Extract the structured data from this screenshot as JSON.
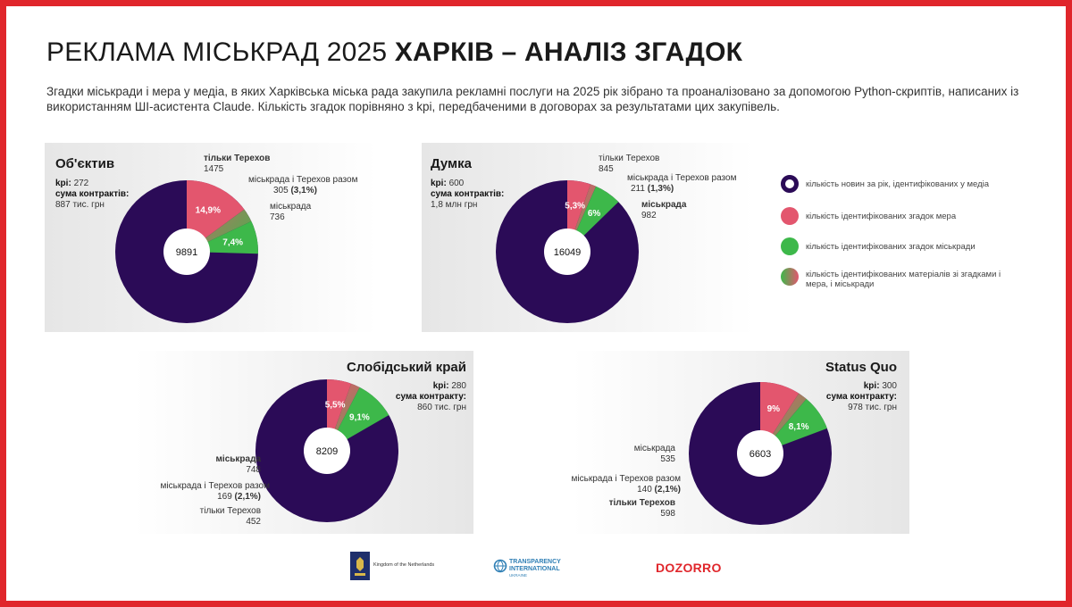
{
  "header": {
    "title_light": "РЕКЛАМА МІСЬКРАД 2025",
    "title_bold": "ХАРКІВ – АНАЛІЗ ЗГАДОК",
    "subtitle": "Згадки міськради і мера у медіа, в яких Харківська міська рада закупила рекламні послуги на 2025 рік зібрано та проаналізовано за допомогою Python-скриптів, написаних із використанням ШІ-асистента Claude. Кількість згадок порівняно з kpi, передбаченими в договорах за результатами цих закупівель."
  },
  "colors": {
    "total": "#2b0b57",
    "mayor": "#e3566e",
    "council": "#3db84a",
    "frame": "#e0262b"
  },
  "legend": [
    {
      "label": "кількість новин за рік, ідентифікованих у медіа",
      "icon": "ring-icon"
    },
    {
      "label": "кількість ідентифікованих згадок мера",
      "icon": "pink-dot-icon"
    },
    {
      "label": "кількість ідентифікованих згадок міськради",
      "icon": "green-dot-icon"
    },
    {
      "label": "кількість ідентифікованих матеріалів зі згадками і мера, і міськради",
      "icon": "gradient-dot-icon"
    }
  ],
  "chart_data": [
    {
      "type": "pie",
      "name": "Об'єктив",
      "kpi_label": "kpi:",
      "kpi_value": "272",
      "contract_label": "сума контрактів:",
      "contract_value": "887 тис. грн",
      "total": 9891,
      "slices": [
        {
          "label": "тільки Терехов",
          "value": 1475,
          "pct_label": "14,9%"
        },
        {
          "label": "міськрада і Терехов разом",
          "value": 305,
          "share": "(3,1%)"
        },
        {
          "label": "міськрада",
          "value": 736,
          "pct_label": "7,4%"
        }
      ]
    },
    {
      "type": "pie",
      "name": "Думка",
      "kpi_label": "kpi:",
      "kpi_value": "600",
      "contract_label": "сума контрактів:",
      "contract_value": "1,8 млн грн",
      "total": 16049,
      "slices": [
        {
          "label": "тільки Терехов",
          "value": 845,
          "pct_label": "5,3%"
        },
        {
          "label": "міськрада і Терехов разом",
          "value": 211,
          "share": "(1,3%)"
        },
        {
          "label": "міськрада",
          "value": 982,
          "pct_label": "6%"
        }
      ]
    },
    {
      "type": "pie",
      "name": "Слобідський край",
      "kpi_label": "kpi:",
      "kpi_value": "280",
      "contract_label": "сума контракту:",
      "contract_value": "860 тис. грн",
      "total": 8209,
      "slices": [
        {
          "label": "тільки Терехов",
          "value": 452,
          "pct_label": "5,5%"
        },
        {
          "label": "міськрада і Терехов разом",
          "value": 169,
          "share": "(2,1%)"
        },
        {
          "label": "міськрада",
          "value": 748,
          "pct_label": "9,1%"
        }
      ]
    },
    {
      "type": "pie",
      "name": "Status Quo",
      "kpi_label": "kpi:",
      "kpi_value": "300",
      "contract_label": "сума контракту:",
      "contract_value": "978 тис. грн",
      "total": 6603,
      "slices": [
        {
          "label": "тільки Терехов",
          "value": 598,
          "pct_label": "9%"
        },
        {
          "label": "міськрада і Терехов разом",
          "value": 140,
          "share": "(2,1%)"
        },
        {
          "label": "міськрада",
          "value": 535,
          "pct_label": "8,1%"
        }
      ]
    }
  ],
  "footer": {
    "nl_text": "Kingdom of the Netherlands",
    "ti_line1": "TRANSPARENCY",
    "ti_line2": "INTERNATIONAL",
    "ti_line3": "UKRAINE",
    "dozorro": "DOZORRO"
  }
}
